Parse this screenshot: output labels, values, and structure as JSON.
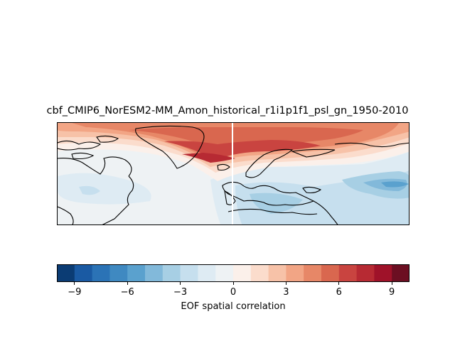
{
  "title": "cbf_CMIP6_NorESM2-MM_Amon_historical_r1i1p1f1_psl_gn_1950-2010",
  "colorbar": {
    "label": "EOF spatial correlation",
    "min": -10,
    "max": 10,
    "ticks": [
      -9,
      -6,
      -3,
      0,
      3,
      6,
      9
    ],
    "tick_labels": [
      "−9",
      "−6",
      "−3",
      "0",
      "3",
      "6",
      "9"
    ],
    "levels": [
      -10,
      -9,
      -8,
      -7,
      -6,
      -5,
      -4,
      -3,
      -2,
      -1,
      0,
      1,
      2,
      3,
      4,
      5,
      6,
      7,
      8,
      9,
      10
    ],
    "colors": [
      "#0b3c74",
      "#1a5aa3",
      "#2b73b6",
      "#3f89c1",
      "#5aa1ce",
      "#82b9da",
      "#a7cfe4",
      "#c6dfee",
      "#deebf3",
      "#eef2f4",
      "#fbf0ea",
      "#fbdccc",
      "#f7c2a8",
      "#f2a585",
      "#e78767",
      "#d9674f",
      "#c94440",
      "#b72a33",
      "#9f1229",
      "#6c0f22"
    ]
  },
  "map": {
    "region": "North Atlantic / Europe",
    "colormap": "RdBu_r",
    "features": [
      "coastlines",
      "filled contours"
    ]
  }
}
